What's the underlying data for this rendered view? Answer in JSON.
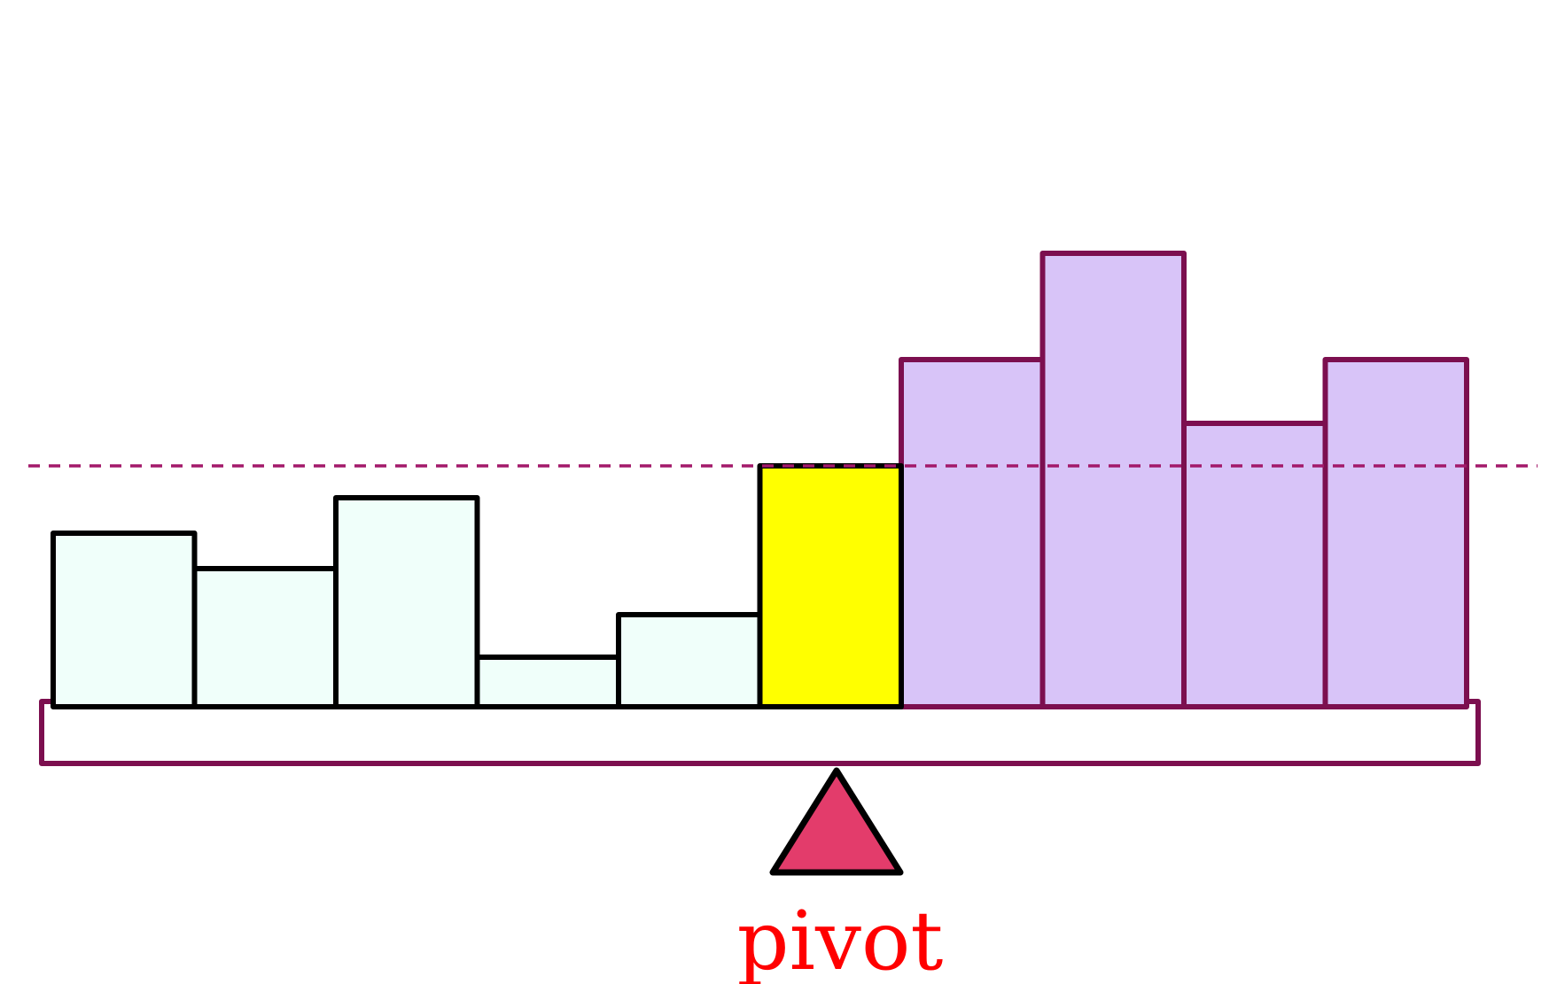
{
  "diagram": {
    "pivot_label": "pivot",
    "pivot_index": 5,
    "bar_heights": [
      4.9,
      3.9,
      5.9,
      1.4,
      2.6,
      6.8,
      9.8,
      12.8,
      8.0,
      9.8
    ],
    "colors": {
      "below_fill": "#f0fffa",
      "below_stroke": "#000000",
      "pivot_fill": "#ffff00",
      "pivot_stroke": "#000000",
      "above_fill": "#d8c4f8",
      "above_stroke": "#7c0f4f",
      "beam_stroke": "#7c0f4f",
      "reference_line": "#a3196a",
      "fulcrum_fill": "#e33c6b",
      "fulcrum_stroke": "#000000",
      "label_color": "#ff0000"
    }
  }
}
